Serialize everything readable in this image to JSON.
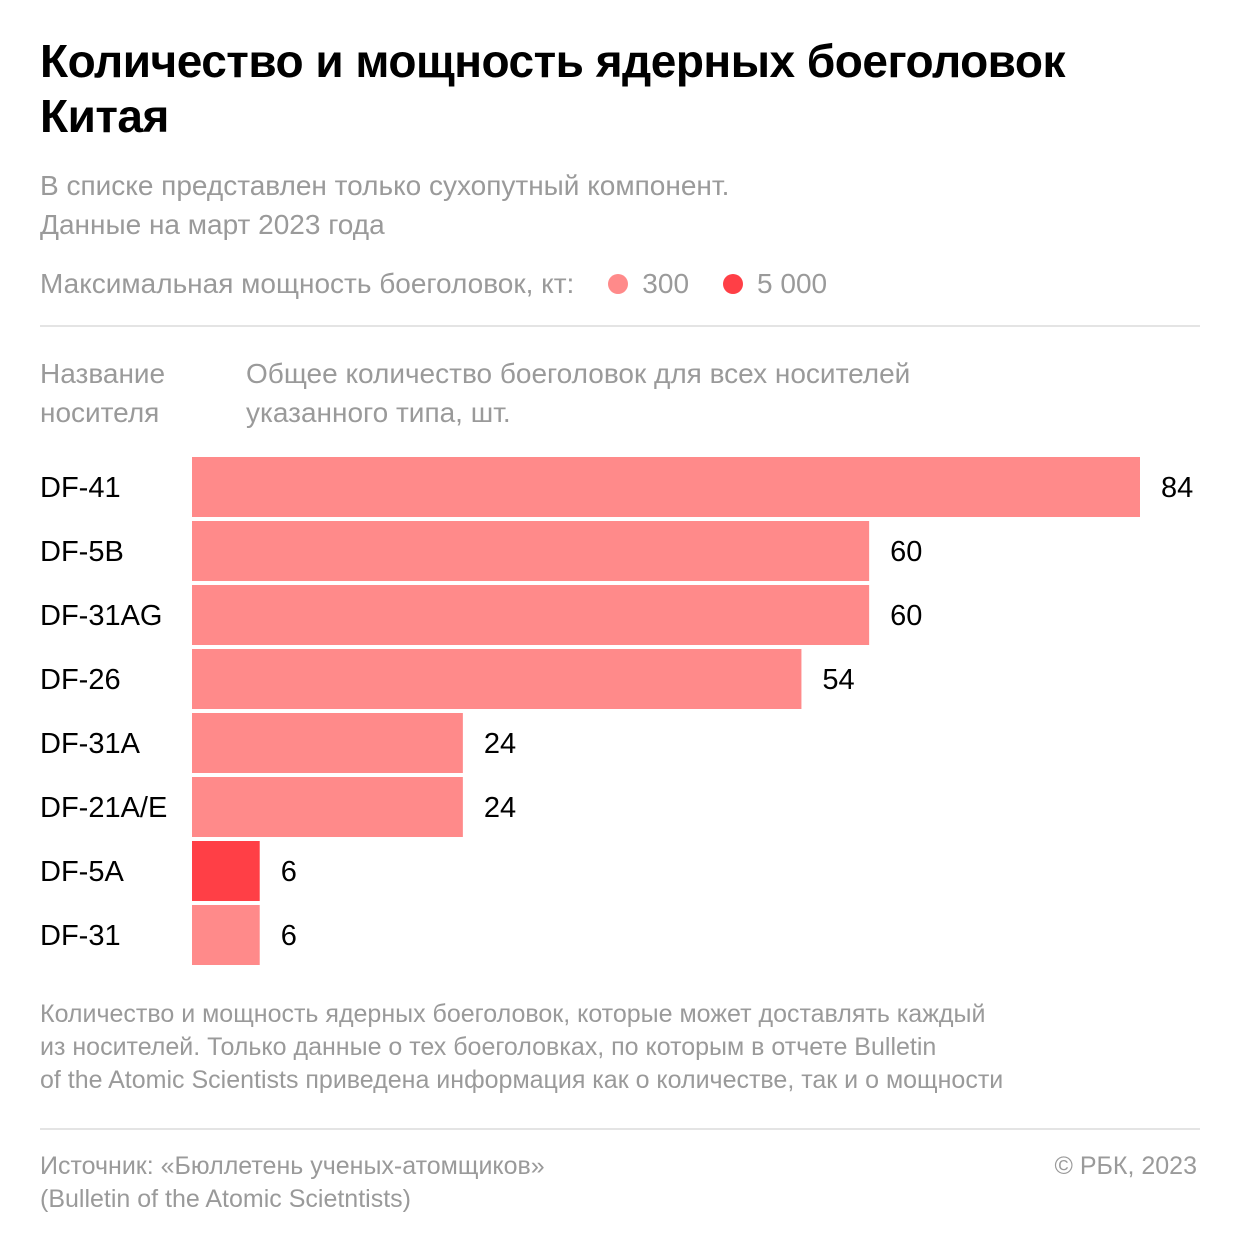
{
  "title": "Количество и мощность ядерных боеголовок Китая",
  "subtitle_line1": "В списке представлен только сухопутный компонент.",
  "subtitle_line2": "Данные на март 2023 года",
  "legend": {
    "label": "Максимальная мощность боеголовок, кт:",
    "items": [
      {
        "label": "300",
        "color": "#ff8a8a"
      },
      {
        "label": "5 000",
        "color": "#ff3f46"
      }
    ]
  },
  "column_headers": {
    "name_line1": "Название",
    "name_line2": "носителя",
    "count_line1": "Общее количество боеголовок для всех носителей",
    "count_line2": "указанного типа, шт."
  },
  "chart_data": {
    "type": "bar",
    "orientation": "horizontal",
    "categories": [
      "DF-41",
      "DF-5B",
      "DF-31AG",
      "DF-26",
      "DF-31A",
      "DF-21A/E",
      "DF-5A",
      "DF-31"
    ],
    "values": [
      84,
      60,
      60,
      54,
      24,
      24,
      6,
      6
    ],
    "value_labels": [
      "84",
      "60",
      "60",
      "54",
      "24",
      "24",
      "6",
      "6"
    ],
    "yield_kt": [
      300,
      300,
      300,
      300,
      300,
      300,
      5000,
      300
    ],
    "colors": {
      "300": "#ff8a8a",
      "5000": "#ff3f46"
    },
    "xlim": [
      0,
      84
    ]
  },
  "note_line1": "Количество и мощность ядерных боеголовок, которые может доставлять каждый",
  "note_line2": "из носителей. Только данные о тех боеголовках, по которым в отчете Bulletin",
  "note_line3": "of the Atomic Scientists приведена информация как о количестве, так и о мощности",
  "source_line1": "Источник: «Бюллетень ученых-атомщиков»",
  "source_line2": "(Bulletin of the Atomic Scietntists)",
  "copyright": "© РБК, 2023"
}
